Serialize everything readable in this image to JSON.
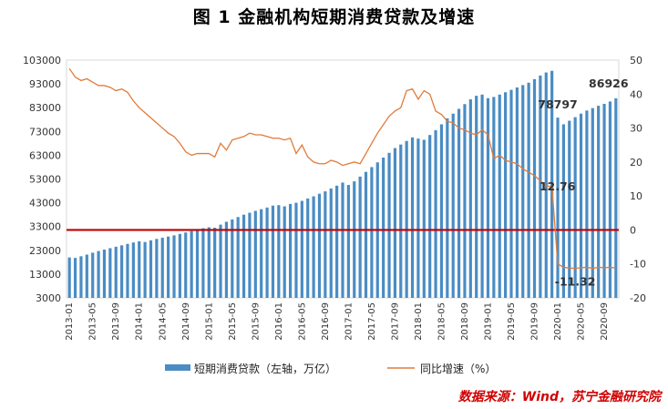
{
  "title": "图 1  金融机构短期消费贷款及增速",
  "source": "数据来源：Wind，苏宁金融研究院",
  "colors": {
    "bar": "#4a8cc4",
    "line": "#e07b39",
    "zero_line": "#c00000"
  },
  "chart_data": {
    "type": "bar",
    "x": [
      "2013-01",
      "2013-02",
      "2013-03",
      "2013-04",
      "2013-05",
      "2013-06",
      "2013-07",
      "2013-08",
      "2013-09",
      "2013-10",
      "2013-11",
      "2013-12",
      "2014-01",
      "2014-02",
      "2014-03",
      "2014-04",
      "2014-05",
      "2014-06",
      "2014-07",
      "2014-08",
      "2014-09",
      "2014-10",
      "2014-11",
      "2014-12",
      "2015-01",
      "2015-02",
      "2015-03",
      "2015-04",
      "2015-05",
      "2015-06",
      "2015-07",
      "2015-08",
      "2015-09",
      "2015-10",
      "2015-11",
      "2015-12",
      "2016-01",
      "2016-02",
      "2016-03",
      "2016-04",
      "2016-05",
      "2016-06",
      "2016-07",
      "2016-08",
      "2016-09",
      "2016-10",
      "2016-11",
      "2016-12",
      "2017-01",
      "2017-02",
      "2017-03",
      "2017-04",
      "2017-05",
      "2017-06",
      "2017-07",
      "2017-08",
      "2017-09",
      "2017-10",
      "2017-11",
      "2017-12",
      "2018-01",
      "2018-02",
      "2018-03",
      "2018-04",
      "2018-05",
      "2018-06",
      "2018-07",
      "2018-08",
      "2018-09",
      "2018-10",
      "2018-11",
      "2018-12",
      "2019-01",
      "2019-02",
      "2019-03",
      "2019-04",
      "2019-05",
      "2019-06",
      "2019-07",
      "2019-08",
      "2019-09",
      "2019-10",
      "2019-11",
      "2019-12",
      "2020-01",
      "2020-02",
      "2020-03",
      "2020-04",
      "2020-05",
      "2020-06",
      "2020-07",
      "2020-08",
      "2020-09",
      "2020-10",
      "2020-11"
    ],
    "x_tick_labels": [
      "2013-01",
      "2013-05",
      "2013-09",
      "2014-01",
      "2014-05",
      "2014-09",
      "2015-01",
      "2015-05",
      "2015-09",
      "2016-01",
      "2016-05",
      "2016-09",
      "2017-01",
      "2017-05",
      "2017-09",
      "2018-01",
      "2018-05",
      "2018-09",
      "2019-01",
      "2019-05",
      "2019-09",
      "2020-01",
      "2020-05",
      "2020-09"
    ],
    "series": [
      {
        "name": "短期消费贷款（左轴，万亿）",
        "axis": "left",
        "type": "bar",
        "values": [
          20000,
          19800,
          20500,
          21200,
          22000,
          22700,
          23300,
          23900,
          24500,
          25100,
          25700,
          26300,
          26800,
          26500,
          27200,
          27800,
          28300,
          28800,
          29300,
          29900,
          30500,
          31100,
          31700,
          32300,
          32700,
          32500,
          33800,
          35000,
          36000,
          37000,
          38000,
          38800,
          39600,
          40300,
          41000,
          41800,
          42000,
          41500,
          42500,
          43000,
          43800,
          44800,
          45700,
          46800,
          47800,
          49000,
          50200,
          51500,
          50500,
          52000,
          54000,
          56000,
          58000,
          60000,
          62000,
          64000,
          66000,
          67500,
          69000,
          70500,
          70000,
          69500,
          71500,
          73500,
          76000,
          78500,
          80500,
          82500,
          84500,
          86500,
          88000,
          88500,
          87000,
          87500,
          88500,
          89500,
          90500,
          91500,
          92500,
          93500,
          95000,
          96500,
          97800,
          98500,
          78797,
          76000,
          77500,
          79000,
          80500,
          81800,
          82800,
          83800,
          84600,
          85600,
          86926
        ]
      },
      {
        "name": "同比增速（%）",
        "axis": "right",
        "type": "line",
        "values": [
          47.5,
          45.0,
          44.0,
          44.5,
          43.5,
          42.5,
          42.5,
          42.0,
          41.0,
          41.5,
          40.5,
          38.0,
          36.0,
          34.5,
          33.0,
          31.5,
          30.0,
          28.5,
          27.5,
          25.5,
          23.0,
          22.0,
          22.5,
          22.5,
          22.5,
          21.5,
          25.5,
          23.5,
          26.5,
          27.0,
          27.5,
          28.5,
          28.0,
          28.0,
          27.5,
          27.0,
          27.0,
          26.5,
          27.0,
          22.5,
          25.0,
          21.5,
          20.0,
          19.5,
          19.5,
          20.5,
          20.0,
          19.0,
          19.5,
          20.0,
          19.5,
          22.5,
          25.5,
          28.5,
          31.0,
          33.5,
          35.0,
          36.0,
          41.0,
          41.5,
          38.5,
          41.0,
          40.0,
          35.0,
          34.0,
          32.0,
          31.5,
          30.0,
          29.5,
          28.5,
          28.0,
          29.5,
          28.0,
          21.0,
          22.0,
          20.5,
          20.0,
          19.5,
          18.0,
          17.0,
          16.0,
          14.5,
          13.0,
          12.76,
          -10.0,
          -11.0,
          -11.2,
          -11.32,
          -11.1,
          -11.0,
          -11.3,
          -11.0,
          -11.1,
          -11.0,
          -11.2
        ]
      }
    ],
    "left_axis": {
      "min": 3000,
      "max": 103000,
      "ticks": [
        "3000",
        "13000",
        "23000",
        "33000",
        "43000",
        "53000",
        "63000",
        "73000",
        "83000",
        "93000",
        "103000"
      ]
    },
    "right_axis": {
      "min": -20,
      "max": 50,
      "ticks": [
        "-20",
        "-10",
        "0",
        "10",
        "20",
        "30",
        "40",
        "50"
      ]
    },
    "zero_line_value": 0,
    "annotations": [
      {
        "text": "78797",
        "series": 0,
        "index": 84
      },
      {
        "text": "86926",
        "series": 0,
        "index": 94
      },
      {
        "text": "12.76",
        "series": 1,
        "index": 83
      },
      {
        "text": "-11.32",
        "series": 1,
        "index": 87
      }
    ],
    "legend": {
      "placement": "bottom",
      "bar_label": "短期消费贷款（左轴，万亿）",
      "line_label": "同比增速（%）"
    }
  }
}
